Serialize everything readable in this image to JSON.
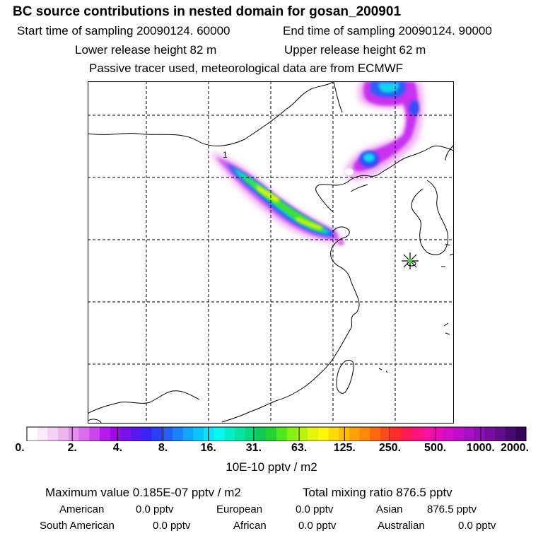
{
  "header": {
    "title": "BC  source contributions in nested domain for gosan_200901",
    "start_time_label": "Start time of sampling 20090124. 60000",
    "end_time_label": "End time of sampling 20090124. 90000",
    "lower_height_label": "Lower release height   82 m",
    "upper_height_label": "Upper release height   62 m",
    "tracer_note": "Passive tracer used, meteorological data are from ECMWF"
  },
  "map": {
    "receptor_icon": "star-marker-icon",
    "plume_label": "1",
    "colors": {
      "coast": "#000000",
      "grid": "#000000",
      "frame": "#000000"
    }
  },
  "colorbar": {
    "tick_labels": [
      "0.",
      "2.",
      "4.",
      "8.",
      "16.",
      "31.",
      "63.",
      "125.",
      "250.",
      "500.",
      "1000.",
      "2000."
    ],
    "colors": [
      "#ffffff",
      "#fbe8fb",
      "#f6d0f6",
      "#eeb4f0",
      "#e48ef0",
      "#da6cf0",
      "#cc44f0",
      "#b81aee",
      "#9a0cee",
      "#7a10ee",
      "#5a18f0",
      "#3a24f4",
      "#2a40f6",
      "#2460f8",
      "#1a82fa",
      "#14a4fc",
      "#0cc4fc",
      "#0ae4fc",
      "#06f8f0",
      "#06ecc8",
      "#08e4a2",
      "#0ad87c",
      "#10cc56",
      "#24d230",
      "#4ee81c",
      "#86f014",
      "#b8f410",
      "#e4f40c",
      "#fff60a",
      "#ffdc08",
      "#ffbe06",
      "#ffa004",
      "#ff8808",
      "#ff6810",
      "#ff4a1c",
      "#ff2c2a",
      "#ff1a52",
      "#ff127c",
      "#f810a0",
      "#e80cb8",
      "#d40cc4",
      "#c00ccc",
      "#a80ec4",
      "#900eb4",
      "#780ea0",
      "#600e8a",
      "#4c0a70",
      "#380658"
    ],
    "unit_label": "10E-10 pptv / m2"
  },
  "footer": {
    "max_value": "Maximum value  0.185E-07 pptv / m2",
    "total_mixing": "Total mixing ratio     876.5 pptv",
    "american_label": "American",
    "american_value": "0.0 pptv",
    "european_label": "European",
    "european_value": "0.0 pptv",
    "asian_label": "Asian",
    "asian_value": "876.5 pptv",
    "south_american_label": "South American",
    "south_american_value": "0.0 pptv",
    "african_label": "African",
    "african_value": "0.0 pptv",
    "australian_label": "Australian",
    "australian_value": "0.0 pptv"
  }
}
